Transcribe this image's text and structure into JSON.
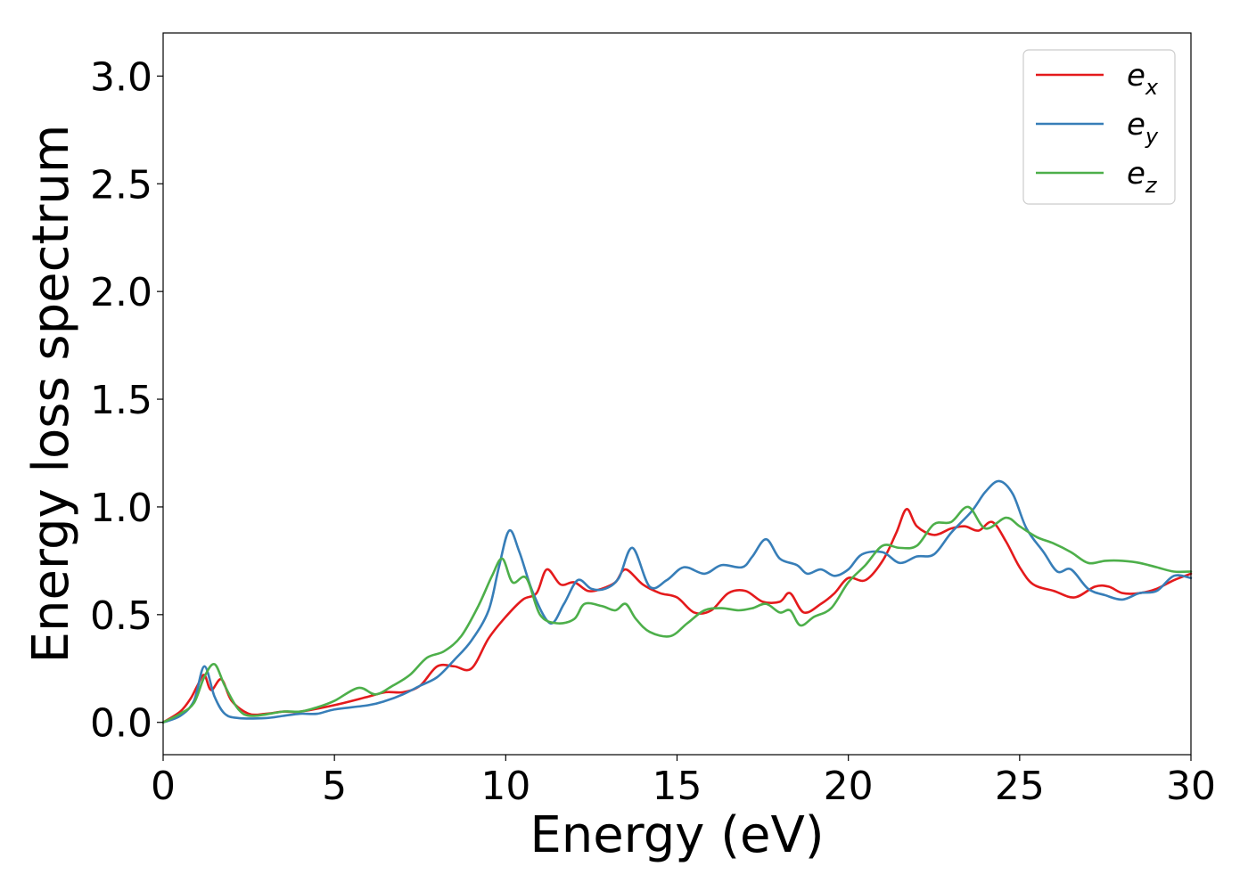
{
  "chart_data": {
    "type": "line",
    "title": "",
    "xlabel": "Energy (eV)",
    "ylabel": "Energy loss spectrum",
    "xlim": [
      0,
      30
    ],
    "ylim": [
      -0.15,
      3.2
    ],
    "xticks": [
      0,
      5,
      10,
      15,
      20,
      25,
      30
    ],
    "yticks": [
      0.0,
      0.5,
      1.0,
      1.5,
      2.0,
      2.5,
      3.0
    ],
    "xtick_labels": [
      "0",
      "5",
      "10",
      "15",
      "20",
      "25",
      "30"
    ],
    "ytick_labels": [
      "0.0",
      "0.5",
      "1.0",
      "1.5",
      "2.0",
      "2.5",
      "3.0"
    ],
    "grid": false,
    "legend_position": "top-right",
    "series": [
      {
        "name": "e",
        "subscript": "x",
        "color": "#e41a1c",
        "points": [
          [
            0,
            0.0
          ],
          [
            0.5,
            0.05
          ],
          [
            0.8,
            0.11
          ],
          [
            1.0,
            0.17
          ],
          [
            1.2,
            0.22
          ],
          [
            1.4,
            0.15
          ],
          [
            1.7,
            0.2
          ],
          [
            2.0,
            0.1
          ],
          [
            2.5,
            0.04
          ],
          [
            3.0,
            0.04
          ],
          [
            3.5,
            0.05
          ],
          [
            4.0,
            0.05
          ],
          [
            5.0,
            0.08
          ],
          [
            6.0,
            0.12
          ],
          [
            6.5,
            0.14
          ],
          [
            7.0,
            0.14
          ],
          [
            7.5,
            0.17
          ],
          [
            8.0,
            0.26
          ],
          [
            8.5,
            0.26
          ],
          [
            9.0,
            0.25
          ],
          [
            9.5,
            0.39
          ],
          [
            10.0,
            0.49
          ],
          [
            10.5,
            0.57
          ],
          [
            10.9,
            0.6
          ],
          [
            11.2,
            0.71
          ],
          [
            11.6,
            0.64
          ],
          [
            12.0,
            0.65
          ],
          [
            12.4,
            0.61
          ],
          [
            12.8,
            0.62
          ],
          [
            13.2,
            0.65
          ],
          [
            13.5,
            0.71
          ],
          [
            14.0,
            0.64
          ],
          [
            14.5,
            0.6
          ],
          [
            15.0,
            0.58
          ],
          [
            15.5,
            0.51
          ],
          [
            16.0,
            0.52
          ],
          [
            16.5,
            0.6
          ],
          [
            17.0,
            0.61
          ],
          [
            17.5,
            0.56
          ],
          [
            18.0,
            0.56
          ],
          [
            18.3,
            0.6
          ],
          [
            18.7,
            0.51
          ],
          [
            19.2,
            0.55
          ],
          [
            19.6,
            0.6
          ],
          [
            20.0,
            0.67
          ],
          [
            20.5,
            0.66
          ],
          [
            21.0,
            0.75
          ],
          [
            21.4,
            0.88
          ],
          [
            21.7,
            0.99
          ],
          [
            22.0,
            0.91
          ],
          [
            22.5,
            0.87
          ],
          [
            23.0,
            0.9
          ],
          [
            23.4,
            0.91
          ],
          [
            23.8,
            0.89
          ],
          [
            24.2,
            0.93
          ],
          [
            24.6,
            0.84
          ],
          [
            25.0,
            0.72
          ],
          [
            25.4,
            0.64
          ],
          [
            26.0,
            0.61
          ],
          [
            26.6,
            0.58
          ],
          [
            27.2,
            0.63
          ],
          [
            27.6,
            0.63
          ],
          [
            28.0,
            0.6
          ],
          [
            28.5,
            0.6
          ],
          [
            29.0,
            0.62
          ],
          [
            29.5,
            0.66
          ],
          [
            30.0,
            0.69
          ]
        ]
      },
      {
        "name": "e",
        "subscript": "y",
        "color": "#377eb8",
        "points": [
          [
            0,
            0.0
          ],
          [
            0.5,
            0.03
          ],
          [
            0.9,
            0.1
          ],
          [
            1.2,
            0.26
          ],
          [
            1.5,
            0.12
          ],
          [
            1.8,
            0.04
          ],
          [
            2.2,
            0.02
          ],
          [
            3.0,
            0.02
          ],
          [
            3.5,
            0.03
          ],
          [
            4.0,
            0.04
          ],
          [
            4.5,
            0.04
          ],
          [
            5.0,
            0.06
          ],
          [
            6.0,
            0.08
          ],
          [
            6.5,
            0.1
          ],
          [
            7.0,
            0.13
          ],
          [
            7.5,
            0.17
          ],
          [
            8.0,
            0.21
          ],
          [
            8.5,
            0.29
          ],
          [
            9.0,
            0.38
          ],
          [
            9.5,
            0.52
          ],
          [
            9.8,
            0.72
          ],
          [
            10.1,
            0.89
          ],
          [
            10.4,
            0.79
          ],
          [
            10.8,
            0.6
          ],
          [
            11.3,
            0.46
          ],
          [
            11.7,
            0.55
          ],
          [
            12.1,
            0.66
          ],
          [
            12.5,
            0.62
          ],
          [
            12.9,
            0.62
          ],
          [
            13.3,
            0.67
          ],
          [
            13.7,
            0.81
          ],
          [
            14.2,
            0.63
          ],
          [
            14.7,
            0.66
          ],
          [
            15.2,
            0.72
          ],
          [
            15.8,
            0.69
          ],
          [
            16.3,
            0.73
          ],
          [
            16.9,
            0.72
          ],
          [
            17.2,
            0.77
          ],
          [
            17.6,
            0.85
          ],
          [
            18.0,
            0.76
          ],
          [
            18.5,
            0.73
          ],
          [
            18.8,
            0.69
          ],
          [
            19.2,
            0.71
          ],
          [
            19.6,
            0.68
          ],
          [
            20.0,
            0.71
          ],
          [
            20.4,
            0.78
          ],
          [
            21.0,
            0.79
          ],
          [
            21.5,
            0.74
          ],
          [
            22.0,
            0.77
          ],
          [
            22.5,
            0.78
          ],
          [
            23.0,
            0.88
          ],
          [
            23.6,
            0.98
          ],
          [
            24.0,
            1.07
          ],
          [
            24.4,
            1.12
          ],
          [
            24.8,
            1.06
          ],
          [
            25.2,
            0.9
          ],
          [
            25.7,
            0.79
          ],
          [
            26.1,
            0.7
          ],
          [
            26.5,
            0.71
          ],
          [
            27.0,
            0.62
          ],
          [
            27.5,
            0.59
          ],
          [
            28.0,
            0.57
          ],
          [
            28.5,
            0.6
          ],
          [
            29.0,
            0.61
          ],
          [
            29.5,
            0.68
          ],
          [
            30.0,
            0.67
          ]
        ]
      },
      {
        "name": "e",
        "subscript": "z",
        "color": "#4daf4a",
        "points": [
          [
            0,
            0.0
          ],
          [
            0.5,
            0.04
          ],
          [
            0.9,
            0.09
          ],
          [
            1.2,
            0.21
          ],
          [
            1.5,
            0.27
          ],
          [
            1.8,
            0.17
          ],
          [
            2.2,
            0.06
          ],
          [
            2.6,
            0.03
          ],
          [
            3.5,
            0.05
          ],
          [
            4.0,
            0.05
          ],
          [
            4.5,
            0.07
          ],
          [
            5.0,
            0.1
          ],
          [
            5.7,
            0.16
          ],
          [
            6.2,
            0.13
          ],
          [
            6.7,
            0.17
          ],
          [
            7.2,
            0.22
          ],
          [
            7.7,
            0.3
          ],
          [
            8.2,
            0.33
          ],
          [
            8.7,
            0.4
          ],
          [
            9.2,
            0.54
          ],
          [
            9.6,
            0.68
          ],
          [
            9.9,
            0.76
          ],
          [
            10.2,
            0.65
          ],
          [
            10.6,
            0.67
          ],
          [
            11.0,
            0.5
          ],
          [
            11.5,
            0.46
          ],
          [
            12.0,
            0.48
          ],
          [
            12.3,
            0.55
          ],
          [
            12.8,
            0.54
          ],
          [
            13.2,
            0.52
          ],
          [
            13.5,
            0.55
          ],
          [
            13.8,
            0.48
          ],
          [
            14.2,
            0.42
          ],
          [
            14.8,
            0.4
          ],
          [
            15.3,
            0.46
          ],
          [
            15.8,
            0.52
          ],
          [
            16.3,
            0.53
          ],
          [
            16.8,
            0.52
          ],
          [
            17.2,
            0.53
          ],
          [
            17.6,
            0.55
          ],
          [
            18.0,
            0.51
          ],
          [
            18.3,
            0.52
          ],
          [
            18.6,
            0.45
          ],
          [
            19.0,
            0.49
          ],
          [
            19.5,
            0.53
          ],
          [
            20.0,
            0.65
          ],
          [
            20.5,
            0.73
          ],
          [
            21.0,
            0.82
          ],
          [
            21.5,
            0.81
          ],
          [
            22.0,
            0.82
          ],
          [
            22.5,
            0.92
          ],
          [
            23.0,
            0.93
          ],
          [
            23.5,
            1.0
          ],
          [
            24.0,
            0.9
          ],
          [
            24.6,
            0.95
          ],
          [
            25.0,
            0.91
          ],
          [
            25.5,
            0.86
          ],
          [
            26.0,
            0.83
          ],
          [
            26.5,
            0.79
          ],
          [
            27.0,
            0.74
          ],
          [
            27.5,
            0.75
          ],
          [
            28.0,
            0.75
          ],
          [
            28.5,
            0.74
          ],
          [
            29.0,
            0.72
          ],
          [
            29.5,
            0.7
          ],
          [
            30.0,
            0.7
          ]
        ]
      }
    ]
  }
}
